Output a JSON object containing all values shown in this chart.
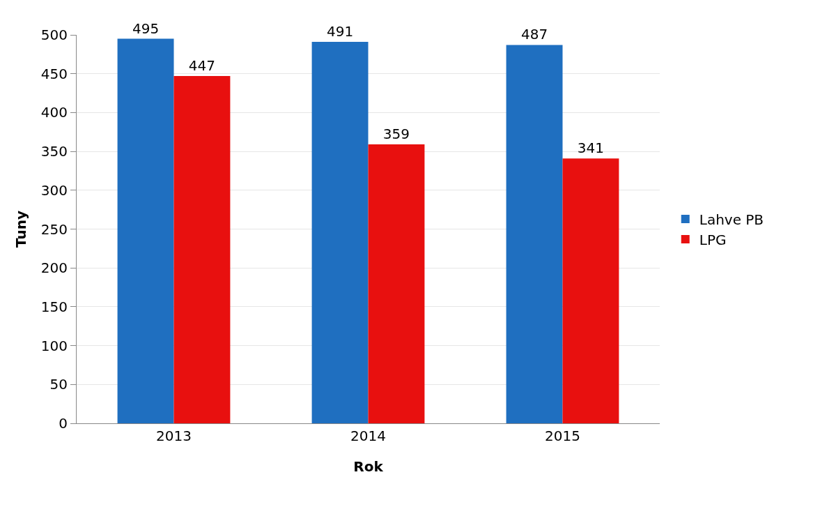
{
  "chart_data": {
    "type": "bar",
    "xlabel": "Rok",
    "ylabel": "Tuny",
    "categories": [
      "2013",
      "2014",
      "2015"
    ],
    "series": [
      {
        "name": "Lahve PB",
        "color": "#1f6fc0",
        "values": [
          495,
          491,
          487
        ]
      },
      {
        "name": "LPG",
        "color": "#e8100f",
        "values": [
          447,
          359,
          341
        ]
      }
    ],
    "ylim": [
      0,
      500
    ],
    "yticks": [
      0,
      50,
      100,
      150,
      200,
      250,
      300,
      350,
      400,
      450,
      500
    ],
    "grid": "y",
    "legend": "right",
    "data_labels": true
  }
}
